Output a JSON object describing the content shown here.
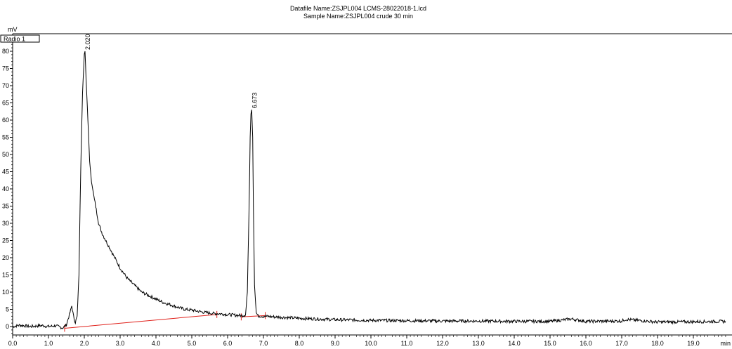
{
  "header": {
    "datafile": "Datafile Name:ZSJPL004 LCMS-28022018-1.lcd",
    "sample": "Sample Name:ZSJPL004 crude 30 min"
  },
  "chart_data": {
    "type": "line",
    "ylabel": "mV",
    "xlabel": "min",
    "detector_label": "Radio 1",
    "xlim": [
      0.0,
      19.9
    ],
    "ylim": [
      -4,
      83
    ],
    "y_ticks": [
      0,
      5,
      10,
      15,
      20,
      25,
      30,
      35,
      40,
      45,
      50,
      55,
      60,
      65,
      70,
      75,
      80
    ],
    "x_ticks": [
      "0.0",
      "1.0",
      "2.0",
      "3.0",
      "4.0",
      "5.0",
      "6.0",
      "7.0",
      "8.0",
      "9.0",
      "10.0",
      "11.0",
      "12.0",
      "13.0",
      "14.0",
      "15.0",
      "16.0",
      "17.0",
      "18.0",
      "19.0"
    ],
    "series": [
      {
        "x": [
          0.0,
          0.2,
          0.5,
          0.8,
          1.0,
          1.2,
          1.4,
          1.5,
          1.6,
          1.65,
          1.7,
          1.75,
          1.8,
          1.85,
          1.9,
          1.95,
          2.0,
          2.02,
          2.05,
          2.1,
          2.15,
          2.2,
          2.3,
          2.4,
          2.5,
          2.6,
          2.7,
          2.8,
          3.0,
          3.2,
          3.4,
          3.6,
          3.8,
          4.0,
          4.2,
          4.5,
          4.8,
          5.0,
          5.3,
          5.6,
          5.8,
          6.0,
          6.2,
          6.4,
          6.5,
          6.55,
          6.6,
          6.63,
          6.65,
          6.673,
          6.7,
          6.72,
          6.75,
          6.8,
          6.85,
          7.0,
          7.5,
          8.0,
          8.5,
          9.0,
          10.0,
          11.0,
          12.0,
          13.0,
          14.0,
          15.0,
          15.6,
          16.0,
          17.0,
          17.1,
          18.0,
          19.0,
          19.9
        ],
        "values": [
          0,
          0.4,
          0,
          0.3,
          0,
          0.2,
          -0.4,
          0.5,
          4,
          6,
          3,
          1.2,
          3,
          15,
          45,
          68,
          79,
          80,
          72,
          60,
          48,
          42,
          36,
          30,
          27,
          25,
          23,
          21,
          17,
          14,
          12,
          10,
          9,
          8,
          7,
          6,
          5,
          4.8,
          4.2,
          3.8,
          3.7,
          3.5,
          3.3,
          3.2,
          3.4,
          10,
          35,
          55,
          62,
          63,
          55,
          35,
          12,
          4,
          3.1,
          3,
          2.7,
          2.4,
          2.2,
          2.0,
          1.8,
          1.7,
          1.6,
          1.6,
          1.5,
          1.5,
          2.2,
          1.5,
          1.6,
          2.1,
          1.3,
          1.4,
          1.5
        ]
      }
    ],
    "peak_labels": [
      {
        "x": 2.02,
        "y": 80,
        "text": "2.020"
      },
      {
        "x": 6.673,
        "y": 63,
        "text": "6.673"
      }
    ],
    "baselines": [
      {
        "x": [
          1.45,
          5.7
        ],
        "values": [
          -0.5,
          3.5
        ]
      },
      {
        "x": [
          6.38,
          7.05
        ],
        "values": [
          2.8,
          3.2
        ]
      }
    ]
  }
}
